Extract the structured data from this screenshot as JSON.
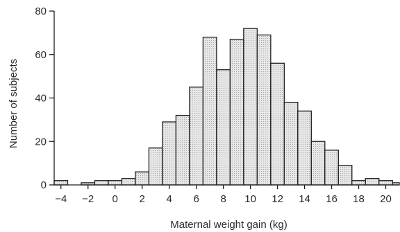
{
  "chart_data": {
    "type": "bar",
    "title": "",
    "xlabel": "Maternal weight gain (kg)",
    "ylabel": "Number of subjects",
    "bin_width": 1,
    "bin_starts": [
      -4.5,
      -3.5,
      -2.5,
      -1.5,
      -0.5,
      0.5,
      1.5,
      2.5,
      3.5,
      4.5,
      5.5,
      6.5,
      7.5,
      8.5,
      9.5,
      10.5,
      11.5,
      12.5,
      13.5,
      14.5,
      15.5,
      16.5,
      17.5,
      18.5,
      19.5,
      20.5
    ],
    "values": [
      2,
      0,
      1,
      2,
      2,
      3,
      6,
      17,
      29,
      32,
      45,
      68,
      53,
      67,
      72,
      69,
      56,
      38,
      34,
      20,
      16,
      9,
      2,
      3,
      2,
      1
    ],
    "xticks": [
      -4,
      -2,
      0,
      2,
      4,
      6,
      8,
      10,
      12,
      14,
      16,
      18,
      20
    ],
    "xtick_labels": [
      "−4",
      "−2",
      "0",
      "2",
      "4",
      "6",
      "8",
      "10",
      "12",
      "14",
      "16",
      "18",
      "20"
    ],
    "yticks": [
      0,
      20,
      40,
      60,
      80
    ],
    "ytick_labels": [
      "0",
      "20",
      "40",
      "60",
      "80"
    ],
    "xlim": [
      -4.5,
      21
    ],
    "ylim": [
      0,
      80
    ],
    "grid": false,
    "colors": {
      "bar_fill": "#e6e6e6",
      "bar_edge": "#1e1e1e"
    }
  }
}
